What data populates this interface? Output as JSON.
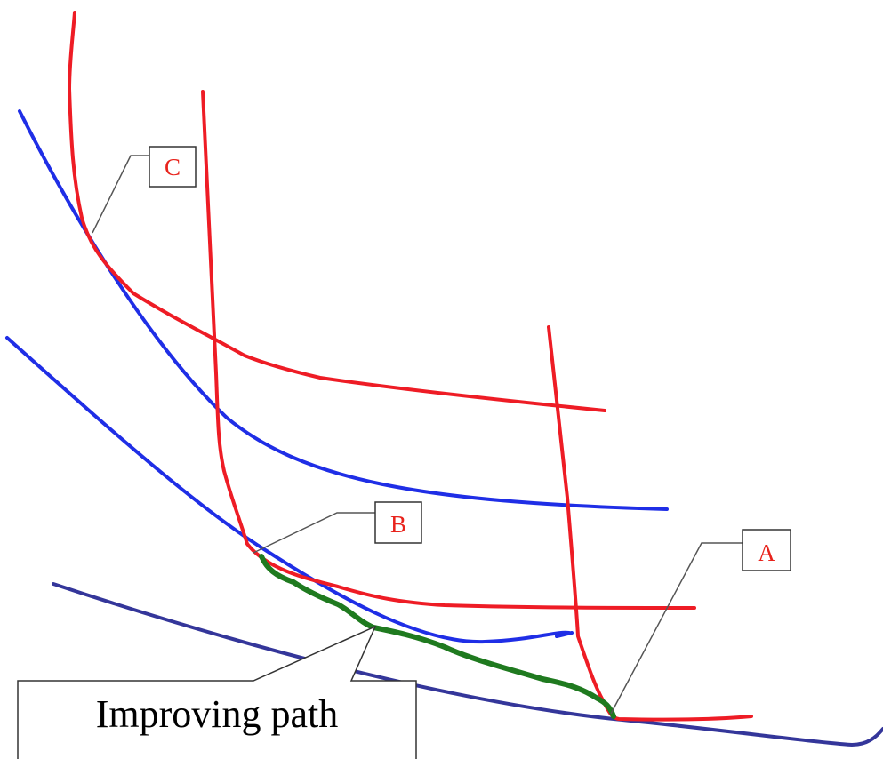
{
  "labels": {
    "a": "A",
    "b": "B",
    "c": "C",
    "callout": "Improving path"
  },
  "colors": {
    "red_curves": "#ee1c25",
    "blue_curves": "#1f2ee6",
    "frontier_curve": "#34369a",
    "improving_path": "#1f7a1f"
  }
}
